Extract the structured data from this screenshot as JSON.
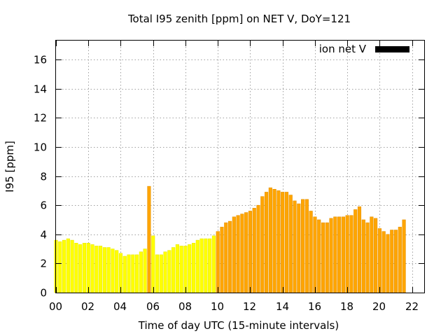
{
  "chart_data": {
    "type": "bar",
    "title": "Total I95 zenith [ppm] on NET V, DoY=121",
    "xlabel": "Time of day UTC (15-minute intervals)",
    "ylabel": "I95 [ppm]",
    "xlim": [
      0,
      22.75
    ],
    "ylim": [
      0,
      17.3
    ],
    "grid": true,
    "legend_position": "top-right",
    "xticks": [
      "00",
      "02",
      "04",
      "06",
      "08",
      "10",
      "12",
      "14",
      "16",
      "18",
      "20",
      "22"
    ],
    "yticks": [
      "0",
      "2",
      "4",
      "6",
      "8",
      "10",
      "12",
      "14",
      "16"
    ],
    "legend": {
      "label": "ion net V",
      "color": "#000000"
    },
    "color_scale": [
      {
        "max": 4,
        "color": "#ffff00"
      },
      {
        "max": 100,
        "color": "#ffa500"
      }
    ],
    "colors": {
      "low": "#ffff00",
      "high": "#ffa500",
      "outline_low": "#e6e600",
      "outline_high": "#e08e00"
    },
    "interval_hours": 0.25,
    "series": [
      {
        "values": [
          3.6,
          3.5,
          3.6,
          3.7,
          3.6,
          3.4,
          3.3,
          3.4,
          3.4,
          3.3,
          3.2,
          3.2,
          3.1,
          3.1,
          3.0,
          2.9,
          2.7,
          2.5,
          2.6,
          2.6,
          2.6,
          2.8,
          3.0,
          7.3,
          3.9,
          2.6,
          2.6,
          2.8,
          2.9,
          3.1,
          3.3,
          3.2,
          3.2,
          3.3,
          3.4,
          3.6,
          3.7,
          3.7,
          3.7,
          3.9,
          4.2,
          4.5,
          4.8,
          4.9,
          5.2,
          5.3,
          5.4,
          5.5,
          5.6,
          5.8,
          6.0,
          6.6,
          6.9,
          7.2,
          7.1,
          7.0,
          6.9,
          6.9,
          6.7,
          6.3,
          6.1,
          6.4,
          6.4,
          5.6,
          5.2,
          5.0,
          4.8,
          4.8,
          5.1,
          5.2,
          5.2,
          5.2,
          5.3,
          5.3,
          5.7,
          5.9,
          5.0,
          4.8,
          5.2,
          5.1,
          4.4,
          4.2,
          4.0,
          4.3,
          4.3,
          4.5,
          5.0
        ]
      }
    ]
  }
}
